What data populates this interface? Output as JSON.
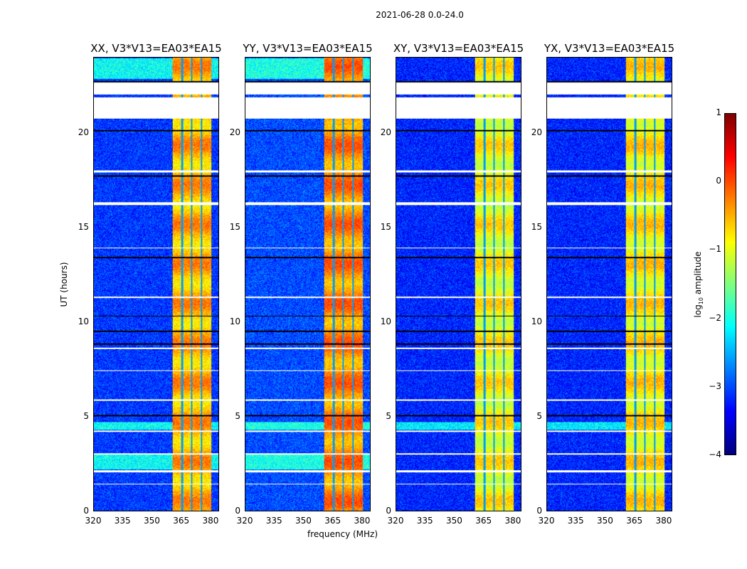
{
  "chart_data": {
    "type": "heatmap",
    "title": "2021-06-28 0.0-24.0",
    "ylabel": "UT (hours)",
    "xlabel": "frequency (MHz)",
    "xlim": [
      320,
      384.4
    ],
    "ylim": [
      0,
      24
    ],
    "xticks": [
      "320",
      "335",
      "350",
      "365",
      "380"
    ],
    "xtick_values": [
      320,
      335,
      350,
      365,
      380
    ],
    "yticks": [
      "0",
      "5",
      "10",
      "15",
      "20"
    ],
    "ytick_values": [
      0,
      5,
      10,
      15,
      20
    ],
    "panels": [
      {
        "title": "XX, V3*V13=EA03*EA15",
        "band_level": -0.5,
        "bg_level": -3.1
      },
      {
        "title": "YY, V3*V13=EA03*EA15",
        "band_level": -0.3,
        "bg_level": -3.0
      },
      {
        "title": "XY, V3*V13=EA03*EA15",
        "band_level": -0.9,
        "bg_level": -3.2
      },
      {
        "title": "YX, V3*V13=EA03*EA15",
        "band_level": -0.8,
        "bg_level": -3.2
      }
    ],
    "bright_band_mhz": [
      360.7,
      380.4
    ],
    "dark_channels_mhz": [
      365.5,
      370.5,
      375.6
    ],
    "flagged_hours": [
      [
        22.05,
        22.7
      ],
      [
        20.8,
        21.9
      ],
      [
        17.95,
        18.05
      ],
      [
        16.2,
        16.35
      ],
      [
        13.9,
        13.95
      ],
      [
        11.3,
        11.35
      ],
      [
        8.6,
        8.65
      ],
      [
        7.4,
        7.45
      ],
      [
        5.85,
        5.9
      ],
      [
        4.2,
        4.25
      ],
      [
        3.0,
        3.05
      ],
      [
        2.05,
        2.15
      ],
      [
        1.4,
        1.45
      ]
    ],
    "black_hours": [
      [
        22.7,
        22.78
      ],
      [
        20.1,
        20.2
      ],
      [
        17.7,
        17.78
      ],
      [
        13.4,
        13.48
      ],
      [
        10.3,
        10.36
      ],
      [
        9.5,
        9.56
      ],
      [
        8.8,
        8.9
      ],
      [
        5.0,
        5.1
      ]
    ],
    "colorbar": {
      "label": "log10 amplitude",
      "label_main": "log",
      "label_sub": "10",
      "label_rest": " amplitude",
      "range": [
        -4,
        1
      ],
      "ticks": [
        "−4",
        "−3",
        "−2",
        "−1",
        "0",
        "1"
      ],
      "tick_values": [
        -4,
        -3,
        -2,
        -1,
        0,
        1
      ],
      "colormap": "jet"
    }
  }
}
